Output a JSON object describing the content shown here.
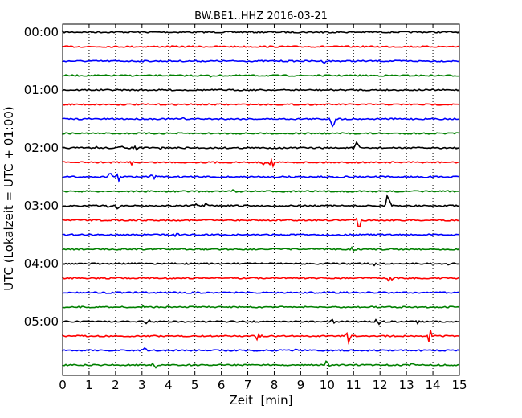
{
  "chart_data": {
    "type": "line",
    "title": "BW.BE1..HHZ 2016-03-21",
    "xlabel": "Zeit  [min]",
    "ylabel": "UTC (Lokalzeit = UTC + 01:00)",
    "xlim": [
      0,
      15
    ],
    "x_ticks": [
      0,
      1,
      2,
      3,
      4,
      5,
      6,
      7,
      8,
      9,
      10,
      11,
      12,
      13,
      14,
      15
    ],
    "x_tick_labels": [
      "0",
      "1",
      "2",
      "3",
      "4",
      "5",
      "6",
      "7",
      "8",
      "9",
      "10",
      "11",
      "12",
      "13",
      "14",
      "15"
    ],
    "y_tick_labels": [
      "00:00",
      "01:00",
      "02:00",
      "03:00",
      "04:00",
      "05:00"
    ],
    "grid": "vertical dotted lines at each minute",
    "trace_colors": [
      "#000000",
      "#ff0000",
      "#0000ff",
      "#008000"
    ],
    "traces": [
      {
        "start": "00:00",
        "events": [
          {
            "t": 4.1,
            "a": 0.1
          },
          {
            "t": 9.8,
            "a": 0.12
          }
        ]
      },
      {
        "start": "00:15",
        "events": []
      },
      {
        "start": "00:30",
        "events": [
          {
            "t": 9.9,
            "a": 0.12
          }
        ]
      },
      {
        "start": "00:45",
        "events": [
          {
            "t": 5.6,
            "a": 0.15
          }
        ]
      },
      {
        "start": "01:00",
        "events": []
      },
      {
        "start": "01:15",
        "events": []
      },
      {
        "start": "01:30",
        "events": [
          {
            "t": 4.6,
            "a": 0.12
          },
          {
            "t": 10.2,
            "a": 0.6
          }
        ]
      },
      {
        "start": "01:45",
        "events": [
          {
            "t": 4.1,
            "a": 0.15
          }
        ]
      },
      {
        "start": "02:00",
        "events": [
          {
            "t": 1.3,
            "a": 0.12
          },
          {
            "t": 2.2,
            "a": 0.15
          },
          {
            "t": 2.8,
            "a": 0.2
          },
          {
            "t": 3.7,
            "a": 0.12
          },
          {
            "t": 11.1,
            "a": 0.45
          }
        ]
      },
      {
        "start": "02:15",
        "events": [
          {
            "t": 2.6,
            "a": 0.15
          },
          {
            "t": 7.6,
            "a": 0.15
          },
          {
            "t": 7.9,
            "a": 0.35
          }
        ]
      },
      {
        "start": "02:30",
        "events": [
          {
            "t": 1.8,
            "a": 0.25
          },
          {
            "t": 2.1,
            "a": 0.4
          },
          {
            "t": 3.4,
            "a": 0.35
          }
        ]
      },
      {
        "start": "02:45",
        "events": [
          {
            "t": 6.5,
            "a": 0.2
          }
        ]
      },
      {
        "start": "03:00",
        "events": [
          {
            "t": 1.7,
            "a": 0.15
          },
          {
            "t": 2.1,
            "a": 0.25
          },
          {
            "t": 5.0,
            "a": 0.15
          },
          {
            "t": 5.4,
            "a": 0.15
          },
          {
            "t": 12.3,
            "a": 0.75
          }
        ]
      },
      {
        "start": "03:15",
        "events": [
          {
            "t": 11.2,
            "a": 0.5
          }
        ]
      },
      {
        "start": "03:30",
        "events": [
          {
            "t": 4.3,
            "a": 0.15
          }
        ]
      },
      {
        "start": "03:45",
        "events": [
          {
            "t": 9.4,
            "a": 0.12
          },
          {
            "t": 11.0,
            "a": 0.2
          }
        ]
      },
      {
        "start": "04:00",
        "events": [
          {
            "t": 11.8,
            "a": 0.25
          },
          {
            "t": 14.6,
            "a": 0.1
          }
        ]
      },
      {
        "start": "04:15",
        "events": [
          {
            "t": 12.4,
            "a": 0.3
          }
        ]
      },
      {
        "start": "04:30",
        "events": [
          {
            "t": 14.5,
            "a": 0.12
          }
        ]
      },
      {
        "start": "04:45",
        "events": [
          {
            "t": 3.0,
            "a": 0.12
          }
        ]
      },
      {
        "start": "05:00",
        "events": [
          {
            "t": 3.2,
            "a": 0.2
          },
          {
            "t": 10.2,
            "a": 0.15
          },
          {
            "t": 11.9,
            "a": 0.3
          },
          {
            "t": 13.4,
            "a": 0.15
          }
        ]
      },
      {
        "start": "05:15",
        "events": [
          {
            "t": 2.6,
            "a": 0.2
          },
          {
            "t": 7.4,
            "a": 0.4
          },
          {
            "t": 10.8,
            "a": 0.45
          },
          {
            "t": 13.9,
            "a": 0.5
          }
        ]
      },
      {
        "start": "05:30",
        "events": [
          {
            "t": 3.1,
            "a": 0.25
          },
          {
            "t": 8.9,
            "a": 0.3
          }
        ]
      },
      {
        "start": "05:45",
        "events": [
          {
            "t": 3.5,
            "a": 0.3
          },
          {
            "t": 10.0,
            "a": 0.3
          },
          {
            "t": 13.2,
            "a": 0.25
          }
        ]
      }
    ]
  }
}
